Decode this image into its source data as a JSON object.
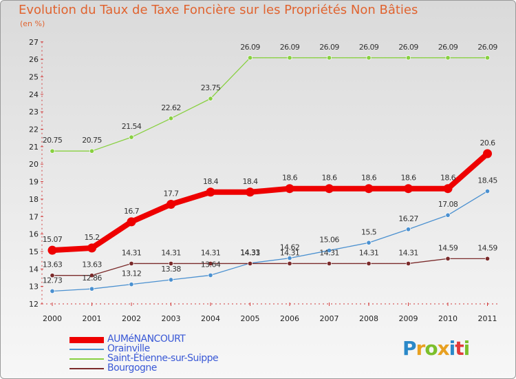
{
  "title": "Evolution du Taux de Taxe Foncière sur les Propriétés Non Bâties",
  "unit_label": "(en %)",
  "logo": {
    "letters": [
      "P",
      "r",
      "o",
      "x",
      "i",
      "t",
      "i"
    ],
    "colors": [
      "#2a88c8",
      "#e8a020",
      "#7cbf2b",
      "#e8a020",
      "#2a88c8",
      "#e23a3a",
      "#7cbf2b"
    ]
  },
  "chart_data": {
    "type": "line",
    "title": "Evolution du Taux de Taxe Foncière sur les Propriétés Non Bâties",
    "ylabel": "(en %)",
    "xlabel": "",
    "x": [
      "2000",
      "2001",
      "2002",
      "2003",
      "2004",
      "2005",
      "2006",
      "2007",
      "2008",
      "2009",
      "2010",
      "2011"
    ],
    "ylim": [
      12,
      27
    ],
    "yticks": [
      12,
      13,
      14,
      15,
      16,
      17,
      18,
      19,
      20,
      21,
      22,
      23,
      24,
      25,
      26,
      27
    ],
    "grid": false,
    "legend": "bottom-left",
    "series": [
      {
        "name": "AUMéNANCOURT",
        "color": "#ee0000",
        "values": [
          15.07,
          15.2,
          16.7,
          17.7,
          18.4,
          18.4,
          18.6,
          18.6,
          18.6,
          18.6,
          18.6,
          20.6
        ],
        "labels": [
          "15.07",
          "15.2",
          "16.7",
          "17.7",
          "18.4",
          "18.4",
          "18.6",
          "18.6",
          "18.6",
          "18.6",
          "18.6",
          "20.6"
        ]
      },
      {
        "name": "Orainville",
        "color": "#4a90d0",
        "values": [
          12.73,
          12.86,
          13.12,
          13.38,
          13.64,
          14.33,
          14.62,
          15.06,
          15.5,
          16.27,
          17.08,
          18.45
        ],
        "labels": [
          "12.73",
          "12.86",
          "13.12",
          "13.38",
          "13.64",
          "14.33",
          "14.62",
          "15.06",
          "15.5",
          "16.27",
          "17.08",
          "18.45"
        ]
      },
      {
        "name": "Saint-Étienne-sur-Suippe",
        "color": "#88d040",
        "values": [
          20.75,
          20.75,
          21.54,
          22.62,
          23.75,
          26.09,
          26.09,
          26.09,
          26.09,
          26.09,
          26.09,
          26.09
        ],
        "labels": [
          "20.75",
          "20.75",
          "21.54",
          "22.62",
          "23.75",
          "26.09",
          "26.09",
          "26.09",
          "26.09",
          "26.09",
          "26.09",
          "26.09"
        ]
      },
      {
        "name": "Bourgogne",
        "color": "#7a2a2a",
        "values": [
          13.63,
          13.63,
          14.31,
          14.31,
          14.31,
          14.31,
          14.31,
          14.31,
          14.31,
          14.31,
          14.59,
          14.59
        ],
        "labels": [
          "13.63",
          "13.63",
          "14.31",
          "14.31",
          "14.31",
          "14.31",
          "14.31",
          "14.31",
          "14.31",
          "14.31",
          "14.59",
          "14.59"
        ]
      }
    ]
  }
}
